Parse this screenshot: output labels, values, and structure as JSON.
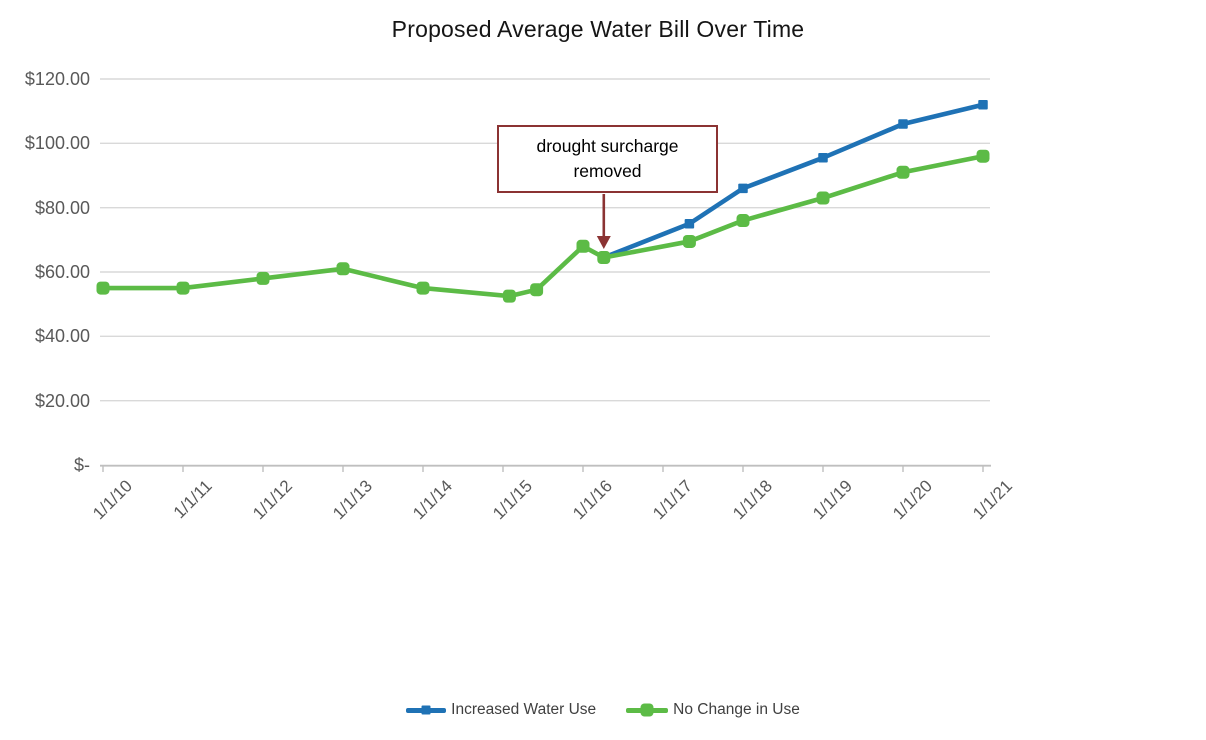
{
  "chart_data": {
    "type": "line",
    "title": "Proposed Average Water Bill Over Time",
    "x_axis": {
      "tick_labels": [
        "1/1/10",
        "1/1/11",
        "1/1/12",
        "1/1/13",
        "1/1/14",
        "1/1/15",
        "1/1/16",
        "1/1/17",
        "1/1/18",
        "1/1/19",
        "1/1/20",
        "1/1/21"
      ],
      "tick_years": [
        2010,
        2011,
        2012,
        2013,
        2014,
        2015,
        2016,
        2017,
        2018,
        2019,
        2020,
        2021
      ]
    },
    "y_axis": {
      "tick_labels": [
        "$120.00",
        "$100.00",
        "$80.00",
        "$60.00",
        "$40.00",
        "$20.00",
        "$-"
      ],
      "tick_values": [
        120,
        100,
        80,
        60,
        40,
        20,
        0
      ],
      "min": 0,
      "max": 120,
      "grid": true
    },
    "series": [
      {
        "name": "Increased Water Use",
        "color": "#1F72B5",
        "marker": "small-square",
        "points": [
          {
            "x": 2016.26,
            "y": 64.5
          },
          {
            "x": 2017.33,
            "y": 75
          },
          {
            "x": 2018,
            "y": 86
          },
          {
            "x": 2019,
            "y": 95.5
          },
          {
            "x": 2020,
            "y": 106
          },
          {
            "x": 2021,
            "y": 112
          }
        ]
      },
      {
        "name": "No Change in Use",
        "color": "#5CBB46",
        "marker": "rounded-square",
        "points": [
          {
            "x": 2010,
            "y": 55
          },
          {
            "x": 2011,
            "y": 55
          },
          {
            "x": 2012,
            "y": 58
          },
          {
            "x": 2013,
            "y": 61
          },
          {
            "x": 2014,
            "y": 55
          },
          {
            "x": 2015.08,
            "y": 52.5
          },
          {
            "x": 2015.42,
            "y": 54.5
          },
          {
            "x": 2016,
            "y": 68
          },
          {
            "x": 2016.26,
            "y": 64.5
          },
          {
            "x": 2017.33,
            "y": 69.5
          },
          {
            "x": 2018,
            "y": 76
          },
          {
            "x": 2019,
            "y": 83
          },
          {
            "x": 2020,
            "y": 91
          },
          {
            "x": 2021,
            "y": 96
          }
        ]
      }
    ],
    "annotation": {
      "line1": "drought surcharge",
      "line2": "removed",
      "color": "#8B3333",
      "arrow_points_to": {
        "x": 2016.26,
        "y": 64.5
      }
    },
    "legend": {
      "position": "bottom",
      "entries": [
        "Increased Water Use",
        "No Change in Use"
      ]
    },
    "layout_colors": {
      "gridline": "#D9D9D9",
      "axis": "#BFBFBF",
      "tick_label": "#595959",
      "legend_text": "#404040"
    }
  }
}
